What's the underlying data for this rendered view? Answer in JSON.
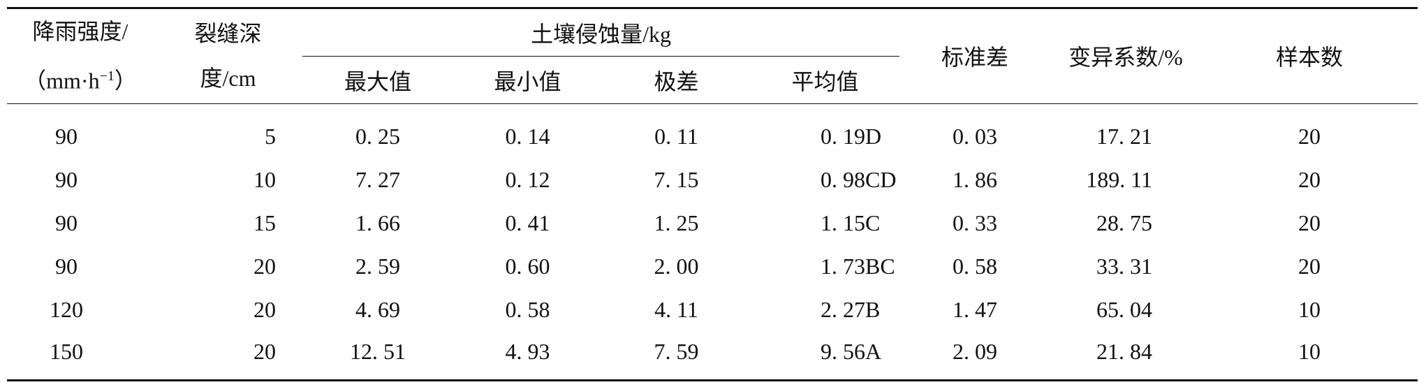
{
  "table": {
    "header": {
      "rain_line1": "降雨强度/",
      "rain_line2_open": "（mm·h",
      "rain_sup": "−1",
      "rain_line2_close": "）",
      "depth_line1": "裂缝深",
      "depth_line2": "度/cm",
      "erosion_group": "土壤侵蚀量/kg",
      "max": "最大值",
      "min": "最小值",
      "range": "极差",
      "mean": "平均值",
      "sd": "标准差",
      "cv": "变异系数/%",
      "n": "样本数"
    },
    "rows": [
      {
        "rain": "90",
        "depth": "5",
        "max": "0. 25",
        "min": "0. 14",
        "range": "0. 11",
        "mean": "0. 19D",
        "sd": "0. 03",
        "cv": "17. 21",
        "n": "20"
      },
      {
        "rain": "90",
        "depth": "10",
        "max": "7. 27",
        "min": "0. 12",
        "range": "7. 15",
        "mean": "0. 98CD",
        "sd": "1. 86",
        "cv": "189. 11",
        "n": "20"
      },
      {
        "rain": "90",
        "depth": "15",
        "max": "1. 66",
        "min": "0. 41",
        "range": "1. 25",
        "mean": "1. 15C",
        "sd": "0. 33",
        "cv": "28. 75",
        "n": "20"
      },
      {
        "rain": "90",
        "depth": "20",
        "max": "2. 59",
        "min": "0. 60",
        "range": "2. 00",
        "mean": "1. 73BC",
        "sd": "0. 58",
        "cv": "33. 31",
        "n": "20"
      },
      {
        "rain": "120",
        "depth": "20",
        "max": "4. 69",
        "min": "0. 58",
        "range": "4. 11",
        "mean": "2. 27B",
        "sd": "1. 47",
        "cv": "65. 04",
        "n": "10"
      },
      {
        "rain": "150",
        "depth": "20",
        "max": "12. 51",
        "min": "4. 93",
        "range": "7. 59",
        "mean": "9. 56A",
        "sd": "2. 09",
        "cv": "21. 84",
        "n": "10"
      }
    ]
  }
}
